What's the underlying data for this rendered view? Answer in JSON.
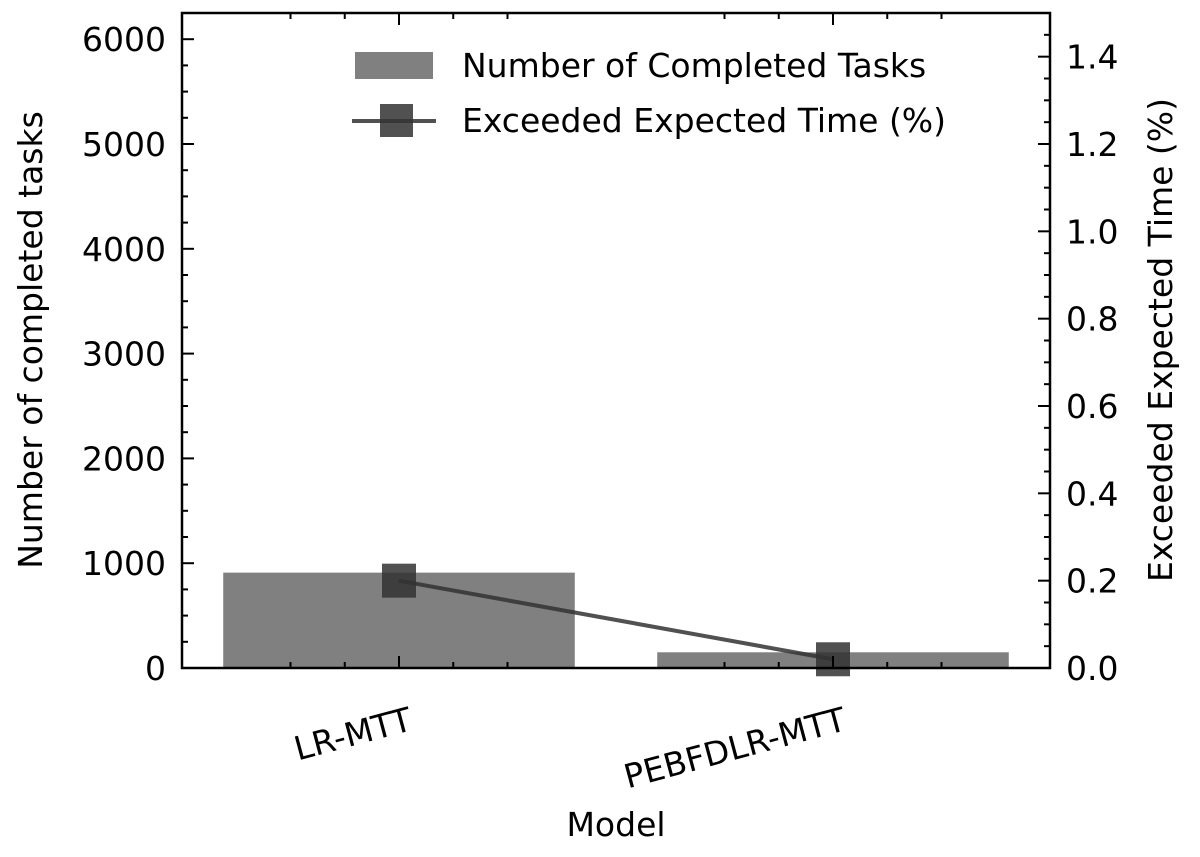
{
  "chart_data": {
    "type": "bar",
    "categories": [
      "LR-MTT",
      "PEBFDLR-MTT"
    ],
    "series": [
      {
        "name": "Number of Completed Tasks",
        "chart_type": "bar",
        "axis": "left",
        "values": [
          910,
          150
        ],
        "color": "#808080"
      },
      {
        "name": "Exceeded Expected Time (%)",
        "chart_type": "line",
        "axis": "right",
        "marker": "square",
        "values": [
          0.2,
          0.02
        ],
        "color": "#333333"
      }
    ],
    "xlabel": "Model",
    "ylabel": "Number of completed tasks",
    "y2label": "Exceeded Expected Time (%)",
    "ylim": [
      0,
      6250
    ],
    "y2lim": [
      0,
      1.5
    ],
    "yticks": [
      "0",
      "1000",
      "2000",
      "3000",
      "4000",
      "5000",
      "6000"
    ],
    "y2ticks": [
      "0.0",
      "0.2",
      "0.4",
      "0.6",
      "0.8",
      "1.0",
      "1.2",
      "1.4"
    ],
    "legend_position": "top-right",
    "grid": false
  }
}
